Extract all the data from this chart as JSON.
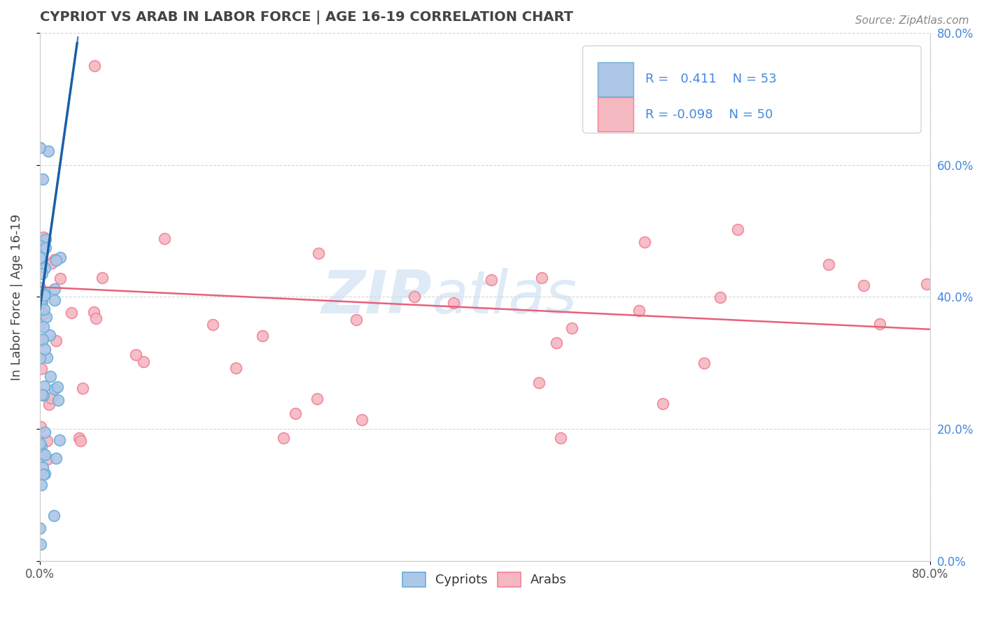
{
  "title": "CYPRIOT VS ARAB IN LABOR FORCE | AGE 16-19 CORRELATION CHART",
  "source_text": "Source: ZipAtlas.com",
  "ylabel": "In Labor Force | Age 16-19",
  "xlim": [
    0.0,
    0.8
  ],
  "ylim": [
    0.0,
    0.8
  ],
  "xtick_positions": [
    0.0,
    0.8
  ],
  "xtick_labels": [
    "0.0%",
    "80.0%"
  ],
  "ytick_positions": [
    0.0,
    0.2,
    0.4,
    0.6,
    0.8
  ],
  "ytick_labels_right": [
    "0.0%",
    "20.0%",
    "40.0%",
    "60.0%",
    "80.0%"
  ],
  "cypriot_color": "#aec6e8",
  "arab_color": "#f4b8c1",
  "cypriot_edge": "#6aaed6",
  "arab_edge": "#f48098",
  "trendline_cypriot_color": "#1a5fa8",
  "trendline_arab_color": "#e8607a",
  "watermark_zip": "ZIP",
  "watermark_atlas": "atlas",
  "legend_R_cypriot": "0.411",
  "legend_N_cypriot": "53",
  "legend_R_arab": "-0.098",
  "legend_N_arab": "50",
  "grid_color": "#cccccc",
  "background_color": "#ffffff",
  "legend_text_color": "#4488dd",
  "right_axis_color": "#4488dd",
  "title_color": "#444444",
  "source_color": "#888888",
  "ylabel_color": "#444444"
}
